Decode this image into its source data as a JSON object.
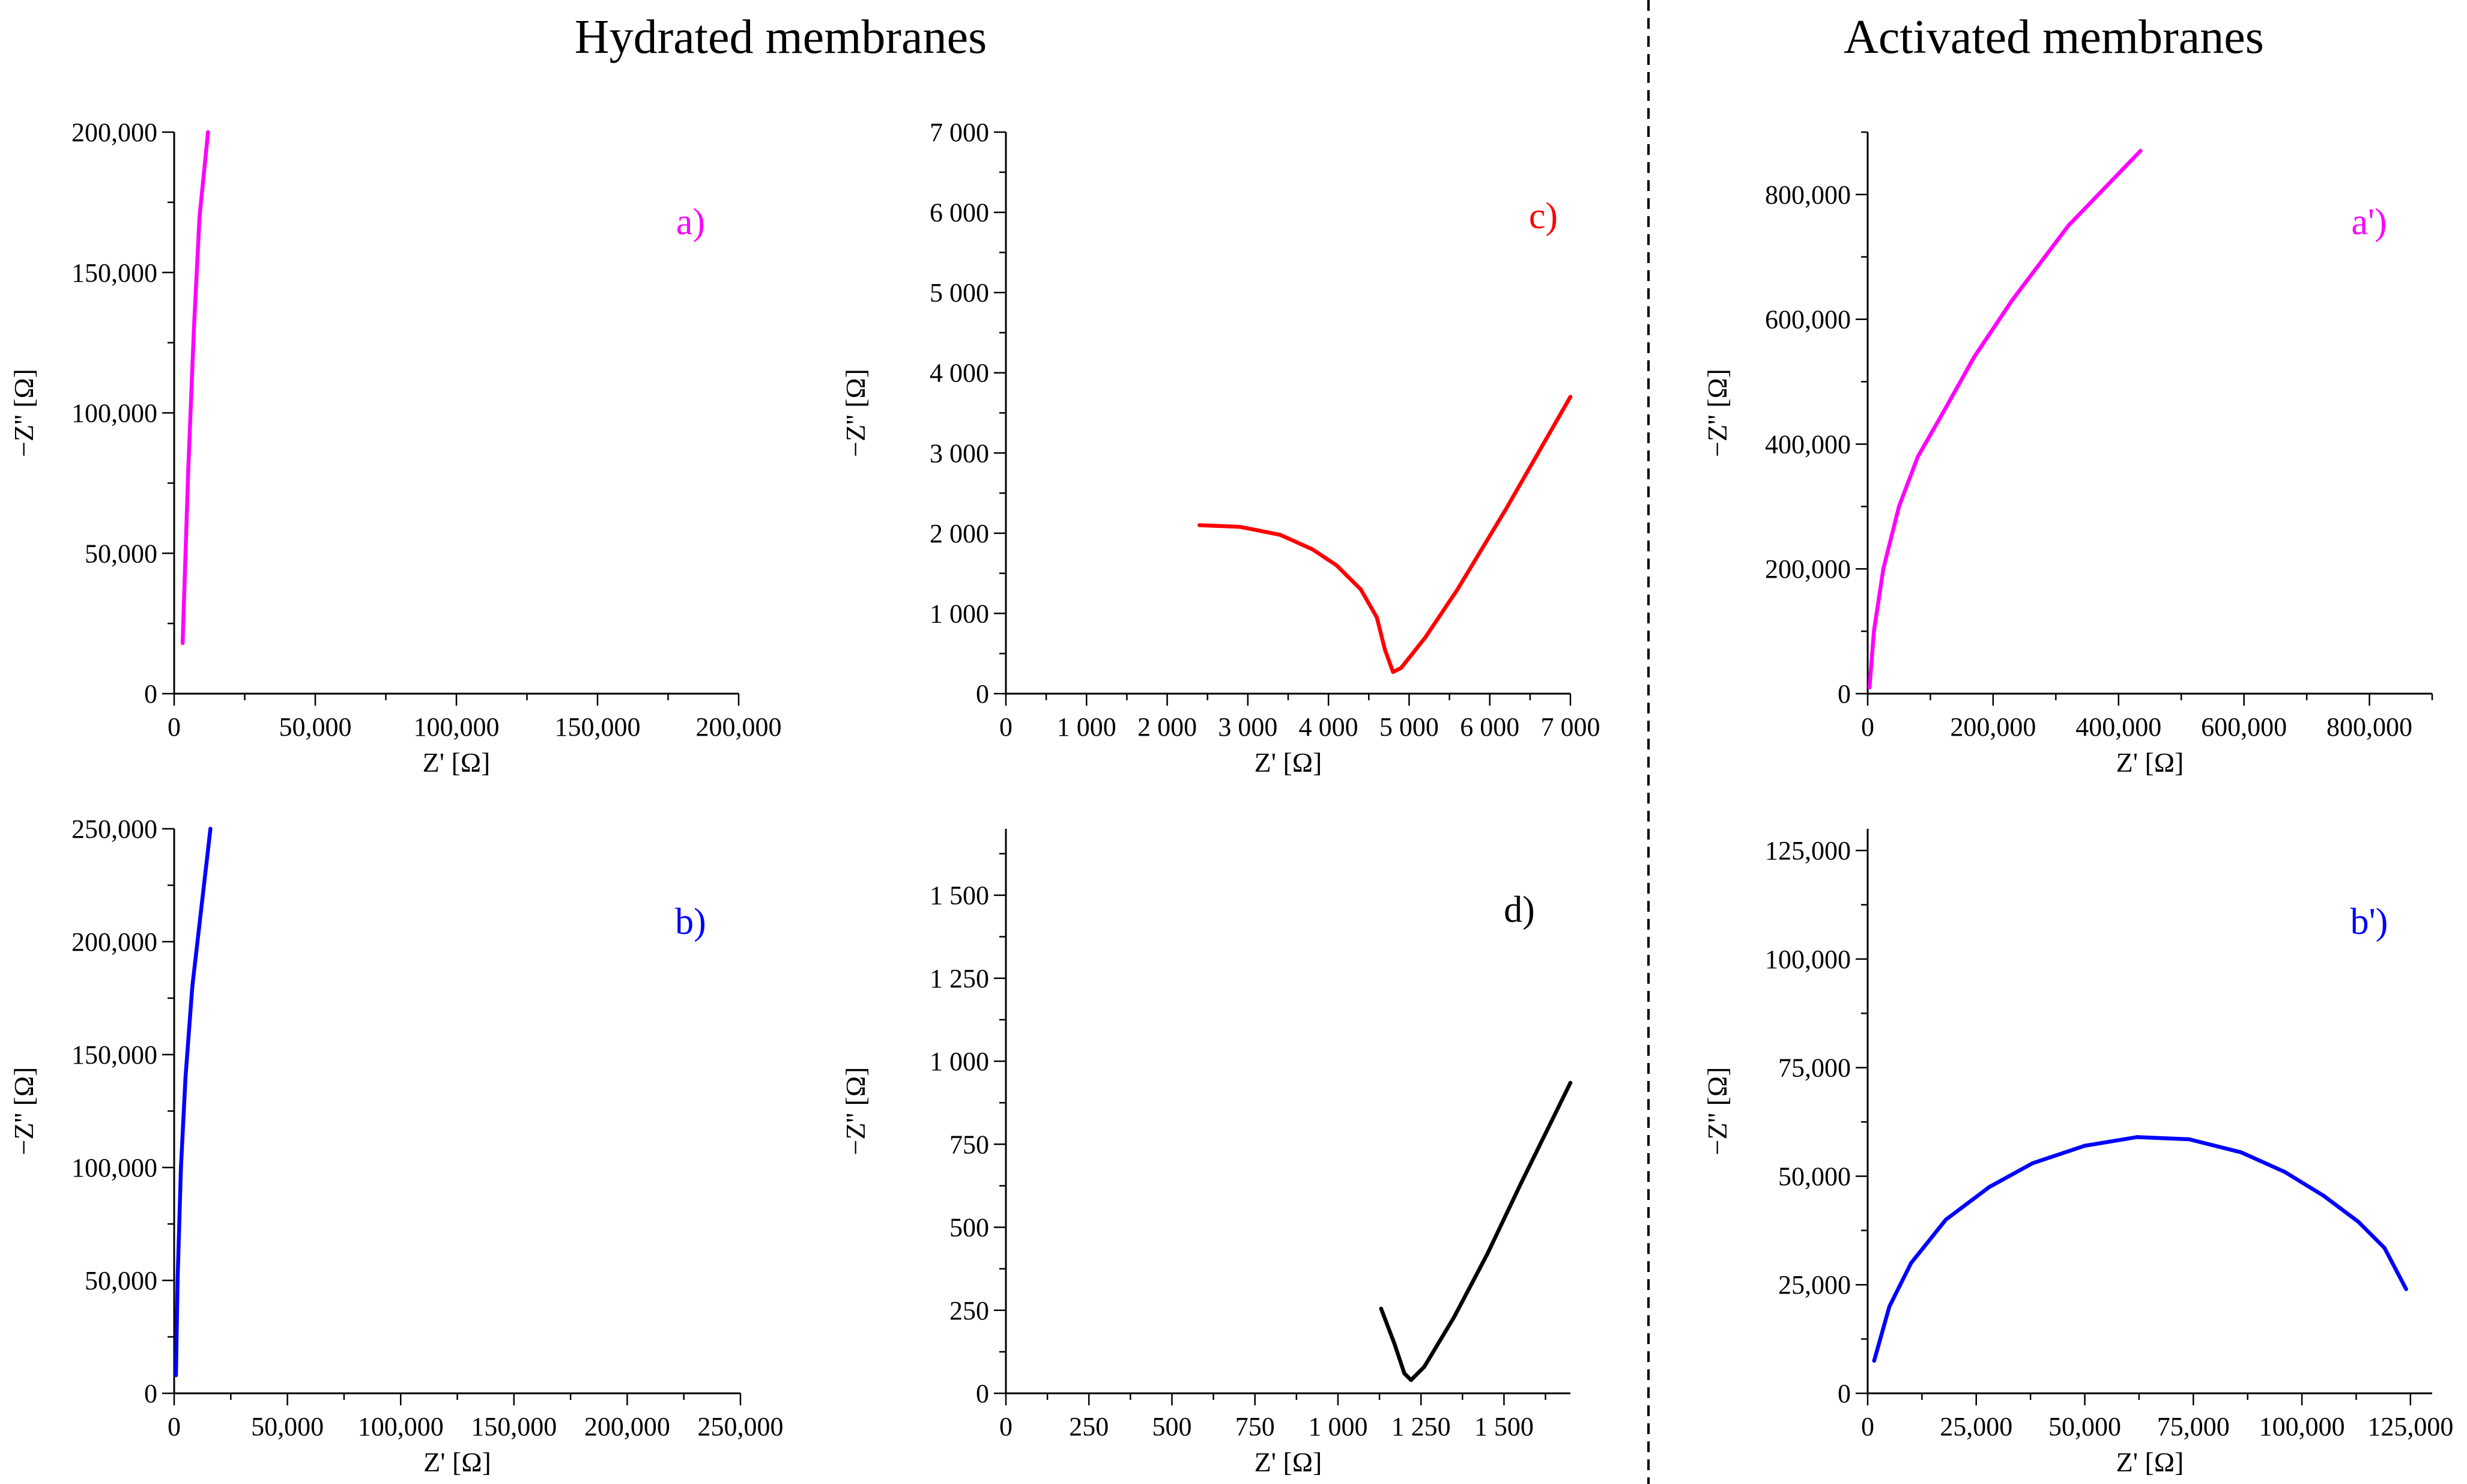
{
  "headings": {
    "left": "Hydrated membranes",
    "right": "Activated membranes"
  },
  "chart_data": [
    {
      "id": "a",
      "type": "line",
      "panel_label": "a)",
      "color": "#ff00ff",
      "xlabel": "Z' [Ω]",
      "ylabel": "−Z'' [Ω]",
      "xlim": [
        0,
        200000
      ],
      "ylim": [
        0,
        200000
      ],
      "xticks": [
        0,
        50000,
        100000,
        150000,
        200000
      ],
      "xtick_labels": [
        "0",
        "50,000",
        "100,000",
        "150,000",
        "200,000"
      ],
      "yticks": [
        0,
        50000,
        100000,
        150000,
        200000
      ],
      "ytick_labels": [
        "0",
        "50,000",
        "100,000",
        "150,000",
        "200,000"
      ],
      "series": [
        {
          "name": "a",
          "x": [
            3000,
            5000,
            7000,
            9000,
            12000
          ],
          "y": [
            18000,
            80000,
            130000,
            170000,
            200000
          ]
        }
      ]
    },
    {
      "id": "c",
      "type": "line",
      "panel_label": "c)",
      "color": "#ff0000",
      "xlabel": "Z' [Ω]",
      "ylabel": "−Z'' [Ω]",
      "xlim": [
        0,
        7000
      ],
      "ylim": [
        0,
        7000
      ],
      "xticks": [
        0,
        1000,
        2000,
        3000,
        4000,
        5000,
        6000,
        7000
      ],
      "xtick_labels": [
        "0",
        "1 000",
        "2 000",
        "3 000",
        "4 000",
        "5 000",
        "6 000",
        "7 000"
      ],
      "yticks": [
        0,
        1000,
        2000,
        3000,
        4000,
        5000,
        6000,
        7000
      ],
      "ytick_labels": [
        "0",
        "1 000",
        "2 000",
        "3 000",
        "4 000",
        "5 000",
        "6 000",
        "7 000"
      ],
      "series": [
        {
          "name": "c",
          "x": [
            2400,
            2900,
            3400,
            3800,
            4100,
            4400,
            4600,
            4700,
            4800,
            4900,
            5200,
            5600,
            6200,
            7000
          ],
          "y": [
            2100,
            2080,
            1980,
            1800,
            1600,
            1300,
            950,
            550,
            270,
            320,
            700,
            1300,
            2300,
            3700
          ]
        }
      ]
    },
    {
      "id": "b",
      "type": "line",
      "panel_label": "b)",
      "color": "#0000ff",
      "xlabel": "Z' [Ω]",
      "ylabel": "−Z'' [Ω]",
      "xlim": [
        0,
        250000
      ],
      "ylim": [
        0,
        250000
      ],
      "xticks": [
        0,
        50000,
        100000,
        150000,
        200000,
        250000
      ],
      "xtick_labels": [
        "0",
        "50,000",
        "100,000",
        "150,000",
        "200,000",
        "250,000"
      ],
      "yticks": [
        0,
        50000,
        100000,
        150000,
        200000,
        250000
      ],
      "ytick_labels": [
        "0",
        "50,000",
        "100,000",
        "150,000",
        "200,000",
        "250,000"
      ],
      "series": [
        {
          "name": "b",
          "x": [
            800,
            1500,
            3000,
            5000,
            8000,
            12000,
            16000
          ],
          "y": [
            8000,
            50000,
            100000,
            140000,
            180000,
            215000,
            250000
          ]
        }
      ]
    },
    {
      "id": "d",
      "type": "line",
      "panel_label": "d)",
      "color": "#000000",
      "xlabel": "Z' [Ω]",
      "ylabel": "−Z'' [Ω]",
      "xlim": [
        0,
        1700
      ],
      "ylim": [
        0,
        1700
      ],
      "xticks": [
        0,
        250,
        500,
        750,
        1000,
        1250,
        1500
      ],
      "xtick_labels": [
        "0",
        "250",
        "500",
        "750",
        "1 000",
        "1 250",
        "1 500"
      ],
      "yticks": [
        0,
        250,
        500,
        750,
        1000,
        1250,
        1500
      ],
      "ytick_labels": [
        "0",
        "250",
        "500",
        "750",
        "1 000",
        "1 250",
        "1 500"
      ],
      "series": [
        {
          "name": "d",
          "x": [
            1130,
            1170,
            1200,
            1220,
            1260,
            1350,
            1450,
            1550,
            1700
          ],
          "y": [
            255,
            150,
            60,
            40,
            80,
            230,
            420,
            630,
            935
          ]
        }
      ]
    },
    {
      "id": "a_prime",
      "type": "line",
      "panel_label": "a')",
      "color": "#ff00ff",
      "xlabel": "Z' [Ω]",
      "ylabel": "−Z'' [Ω]",
      "xlim": [
        0,
        900000
      ],
      "ylim": [
        0,
        900000
      ],
      "xticks": [
        0,
        200000,
        400000,
        600000,
        800000
      ],
      "xtick_labels": [
        "0",
        "200,000",
        "400,000",
        "600,000",
        "800,000"
      ],
      "yticks": [
        0,
        200000,
        400000,
        600000,
        800000
      ],
      "ytick_labels": [
        "0",
        "200,000",
        "400,000",
        "600,000",
        "800,000"
      ],
      "series": [
        {
          "name": "a'",
          "x": [
            3000,
            10000,
            25000,
            50000,
            80000,
            120000,
            170000,
            230000,
            320000,
            435000
          ],
          "y": [
            10000,
            100000,
            200000,
            300000,
            380000,
            450000,
            540000,
            630000,
            750000,
            870000
          ]
        }
      ]
    },
    {
      "id": "b_prime",
      "type": "line",
      "panel_label": "b')",
      "color": "#0000ff",
      "xlabel": "Z' [Ω]",
      "ylabel": "−Z'' [Ω]",
      "xlim": [
        0,
        130000
      ],
      "ylim": [
        0,
        130000
      ],
      "xticks": [
        0,
        25000,
        50000,
        75000,
        100000,
        125000
      ],
      "xtick_labels": [
        "0",
        "25,000",
        "50,000",
        "75,000",
        "100,000",
        "125,000"
      ],
      "yticks": [
        0,
        25000,
        50000,
        75000,
        100000,
        125000
      ],
      "ytick_labels": [
        "0",
        "25,000",
        "50,000",
        "75,000",
        "100,000",
        "125,000"
      ],
      "series": [
        {
          "name": "b'",
          "x": [
            1500,
            5000,
            10000,
            18000,
            28000,
            38000,
            50000,
            62000,
            74000,
            86000,
            96000,
            105000,
            113000,
            119000,
            124000
          ],
          "y": [
            7500,
            20000,
            30000,
            40000,
            47500,
            53000,
            57000,
            59000,
            58500,
            55500,
            51000,
            45500,
            39500,
            33500,
            24000
          ]
        }
      ]
    }
  ]
}
